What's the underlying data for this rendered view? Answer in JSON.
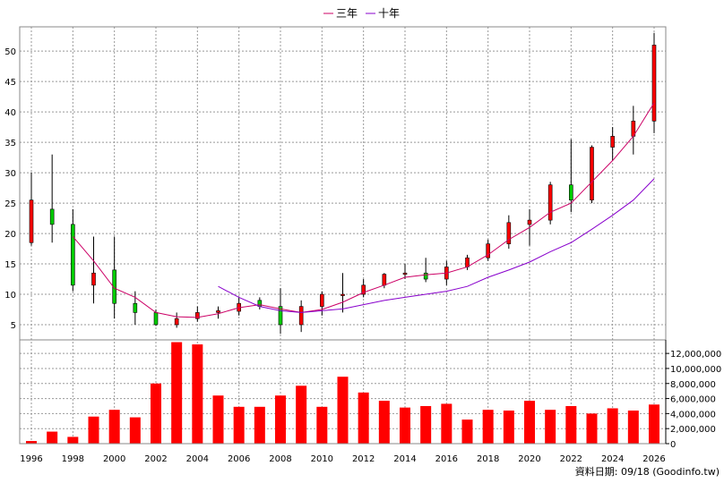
{
  "chart_data": {
    "type": "candlestick",
    "x_labels": [
      "1996",
      "1998",
      "2000",
      "2002",
      "2004",
      "2006",
      "2008",
      "2010",
      "2012",
      "2014",
      "2016",
      "2018",
      "2020",
      "2022",
      "2024",
      "2026"
    ],
    "price_axis": {
      "ylim": [
        2.5,
        54
      ],
      "ticks": [
        5,
        10,
        15,
        20,
        25,
        30,
        35,
        40,
        45,
        50
      ]
    },
    "volume_axis": {
      "ylim": [
        0,
        13800000
      ],
      "ticks": [
        0,
        2000000,
        4000000,
        6000000,
        8000000,
        10000000,
        12000000
      ],
      "tick_labels": [
        "0",
        "2,000,000",
        "4,000,000",
        "6,000,000",
        "8,000,000",
        "10,000,000",
        "12,000,000"
      ]
    },
    "legend": [
      {
        "name": "三年",
        "color": "#cc0066"
      },
      {
        "name": "十年",
        "color": "#8800cc"
      }
    ],
    "colors": {
      "up": "#ff0000",
      "down": "#00cc00",
      "volume": "#ff0000",
      "grid": "#999999"
    },
    "candles": [
      {
        "year": 1996,
        "open": 18.5,
        "high": 30,
        "low": 18,
        "close": 25.5
      },
      {
        "year": 1997,
        "open": 24,
        "high": 33,
        "low": 18.5,
        "close": 21.5
      },
      {
        "year": 1998,
        "open": 21.5,
        "high": 24,
        "low": 10.5,
        "close": 11.5
      },
      {
        "year": 1999,
        "open": 11.5,
        "high": 19.5,
        "low": 8.5,
        "close": 13.5
      },
      {
        "year": 2000,
        "open": 14,
        "high": 19.5,
        "low": 6,
        "close": 8.5
      },
      {
        "year": 2001,
        "open": 8.5,
        "high": 10.5,
        "low": 5,
        "close": 7
      },
      {
        "year": 2002,
        "open": 7,
        "high": 7.5,
        "low": 4.8,
        "close": 5
      },
      {
        "year": 2003,
        "open": 5,
        "high": 7,
        "low": 4.5,
        "close": 6
      },
      {
        "year": 2004,
        "open": 6,
        "high": 8,
        "low": 5.5,
        "close": 7
      },
      {
        "year": 2005,
        "open": 7,
        "high": 8,
        "low": 6,
        "close": 7.3
      },
      {
        "year": 2006,
        "open": 7.2,
        "high": 9.5,
        "low": 6.5,
        "close": 8.5
      },
      {
        "year": 2007,
        "open": 9,
        "high": 9.5,
        "low": 7.5,
        "close": 8
      },
      {
        "year": 2008,
        "open": 8,
        "high": 11,
        "low": 3.5,
        "close": 5
      },
      {
        "year": 2009,
        "open": 5,
        "high": 9,
        "low": 3.8,
        "close": 8
      },
      {
        "year": 2010,
        "open": 8,
        "high": 10.5,
        "low": 6.5,
        "close": 10
      },
      {
        "year": 2011,
        "open": 10,
        "high": 13.5,
        "low": 7,
        "close": 10
      },
      {
        "year": 2012,
        "open": 10,
        "high": 12.5,
        "low": 9.5,
        "close": 11.5
      },
      {
        "year": 2013,
        "open": 11.5,
        "high": 13.5,
        "low": 11,
        "close": 13.3
      },
      {
        "year": 2014,
        "open": 13.5,
        "high": 15,
        "low": 12.5,
        "close": 13.5
      },
      {
        "year": 2015,
        "open": 13.5,
        "high": 16,
        "low": 12,
        "close": 12.5
      },
      {
        "year": 2016,
        "open": 12.5,
        "high": 15.5,
        "low": 11.5,
        "close": 14.5
      },
      {
        "year": 2017,
        "open": 14.5,
        "high": 16.5,
        "low": 14,
        "close": 16
      },
      {
        "year": 2018,
        "open": 16,
        "high": 19,
        "low": 15.5,
        "close": 18.3
      },
      {
        "year": 2019,
        "open": 18.3,
        "high": 23,
        "low": 17.5,
        "close": 21.8
      },
      {
        "year": 2020,
        "open": 21.5,
        "high": 24,
        "low": 18,
        "close": 22.2
      },
      {
        "year": 2021,
        "open": 22.2,
        "high": 28.5,
        "low": 21.5,
        "close": 28
      },
      {
        "year": 2022,
        "open": 28,
        "high": 35.5,
        "low": 23.5,
        "close": 25.5
      },
      {
        "year": 2023,
        "open": 25.5,
        "high": 34.5,
        "low": 25,
        "close": 34.2
      },
      {
        "year": 2024,
        "open": 34.2,
        "high": 37.5,
        "low": 32,
        "close": 36
      },
      {
        "year": 2025,
        "open": 36,
        "high": 41,
        "low": 33,
        "close": 38.5
      },
      {
        "year": 2026,
        "open": 38.5,
        "high": 53,
        "low": 36.5,
        "close": 51
      }
    ],
    "volume": [
      {
        "year": 1996,
        "value": 350000
      },
      {
        "year": 1997,
        "value": 1600000
      },
      {
        "year": 1998,
        "value": 900000
      },
      {
        "year": 1999,
        "value": 3600000
      },
      {
        "year": 2000,
        "value": 4500000
      },
      {
        "year": 2001,
        "value": 3500000
      },
      {
        "year": 2002,
        "value": 8000000
      },
      {
        "year": 2003,
        "value": 13500000
      },
      {
        "year": 2004,
        "value": 13200000
      },
      {
        "year": 2005,
        "value": 6400000
      },
      {
        "year": 2006,
        "value": 4900000
      },
      {
        "year": 2007,
        "value": 4900000
      },
      {
        "year": 2008,
        "value": 6400000
      },
      {
        "year": 2009,
        "value": 7700000
      },
      {
        "year": 2010,
        "value": 4900000
      },
      {
        "year": 2011,
        "value": 8900000
      },
      {
        "year": 2012,
        "value": 6800000
      },
      {
        "year": 2013,
        "value": 5700000
      },
      {
        "year": 2014,
        "value": 4800000
      },
      {
        "year": 2015,
        "value": 5000000
      },
      {
        "year": 2016,
        "value": 5300000
      },
      {
        "year": 2017,
        "value": 3200000
      },
      {
        "year": 2018,
        "value": 4500000
      },
      {
        "year": 2019,
        "value": 4400000
      },
      {
        "year": 2020,
        "value": 5700000
      },
      {
        "year": 2021,
        "value": 4500000
      },
      {
        "year": 2022,
        "value": 5000000
      },
      {
        "year": 2023,
        "value": 4000000
      },
      {
        "year": 2024,
        "value": 4700000
      },
      {
        "year": 2025,
        "value": 4400000
      },
      {
        "year": 2026,
        "value": 5200000
      }
    ],
    "series": [
      {
        "name": "三年",
        "x": [
          1998,
          1999,
          2000,
          2001,
          2002,
          2003,
          2004,
          2005,
          2006,
          2007,
          2008,
          2009,
          2010,
          2011,
          2012,
          2013,
          2014,
          2015,
          2016,
          2017,
          2018,
          2019,
          2020,
          2021,
          2022,
          2023,
          2024,
          2025,
          2026
        ],
        "values": [
          19.5,
          15.5,
          11,
          9.5,
          7,
          6.3,
          6.2,
          6.8,
          7.8,
          8.3,
          7.6,
          7,
          7.5,
          8.7,
          10.3,
          11.5,
          12.8,
          13.2,
          13.5,
          14.5,
          16.5,
          19,
          21,
          23.5,
          25,
          28.5,
          32,
          36,
          41.5
        ]
      },
      {
        "name": "十年",
        "x": [
          2005,
          2006,
          2007,
          2008,
          2009,
          2010,
          2011,
          2012,
          2013,
          2014,
          2015,
          2016,
          2017,
          2018,
          2019,
          2020,
          2021,
          2022,
          2023,
          2024,
          2025,
          2026
        ],
        "values": [
          11.3,
          9.5,
          8,
          7.3,
          7,
          7.3,
          7.6,
          8.3,
          9,
          9.5,
          10,
          10.5,
          11.3,
          12.8,
          14,
          15.3,
          17,
          18.5,
          20.7,
          23,
          25.5,
          29
        ]
      }
    ],
    "footer": "資料日期: 09/18  (Goodinfo.tw)"
  }
}
